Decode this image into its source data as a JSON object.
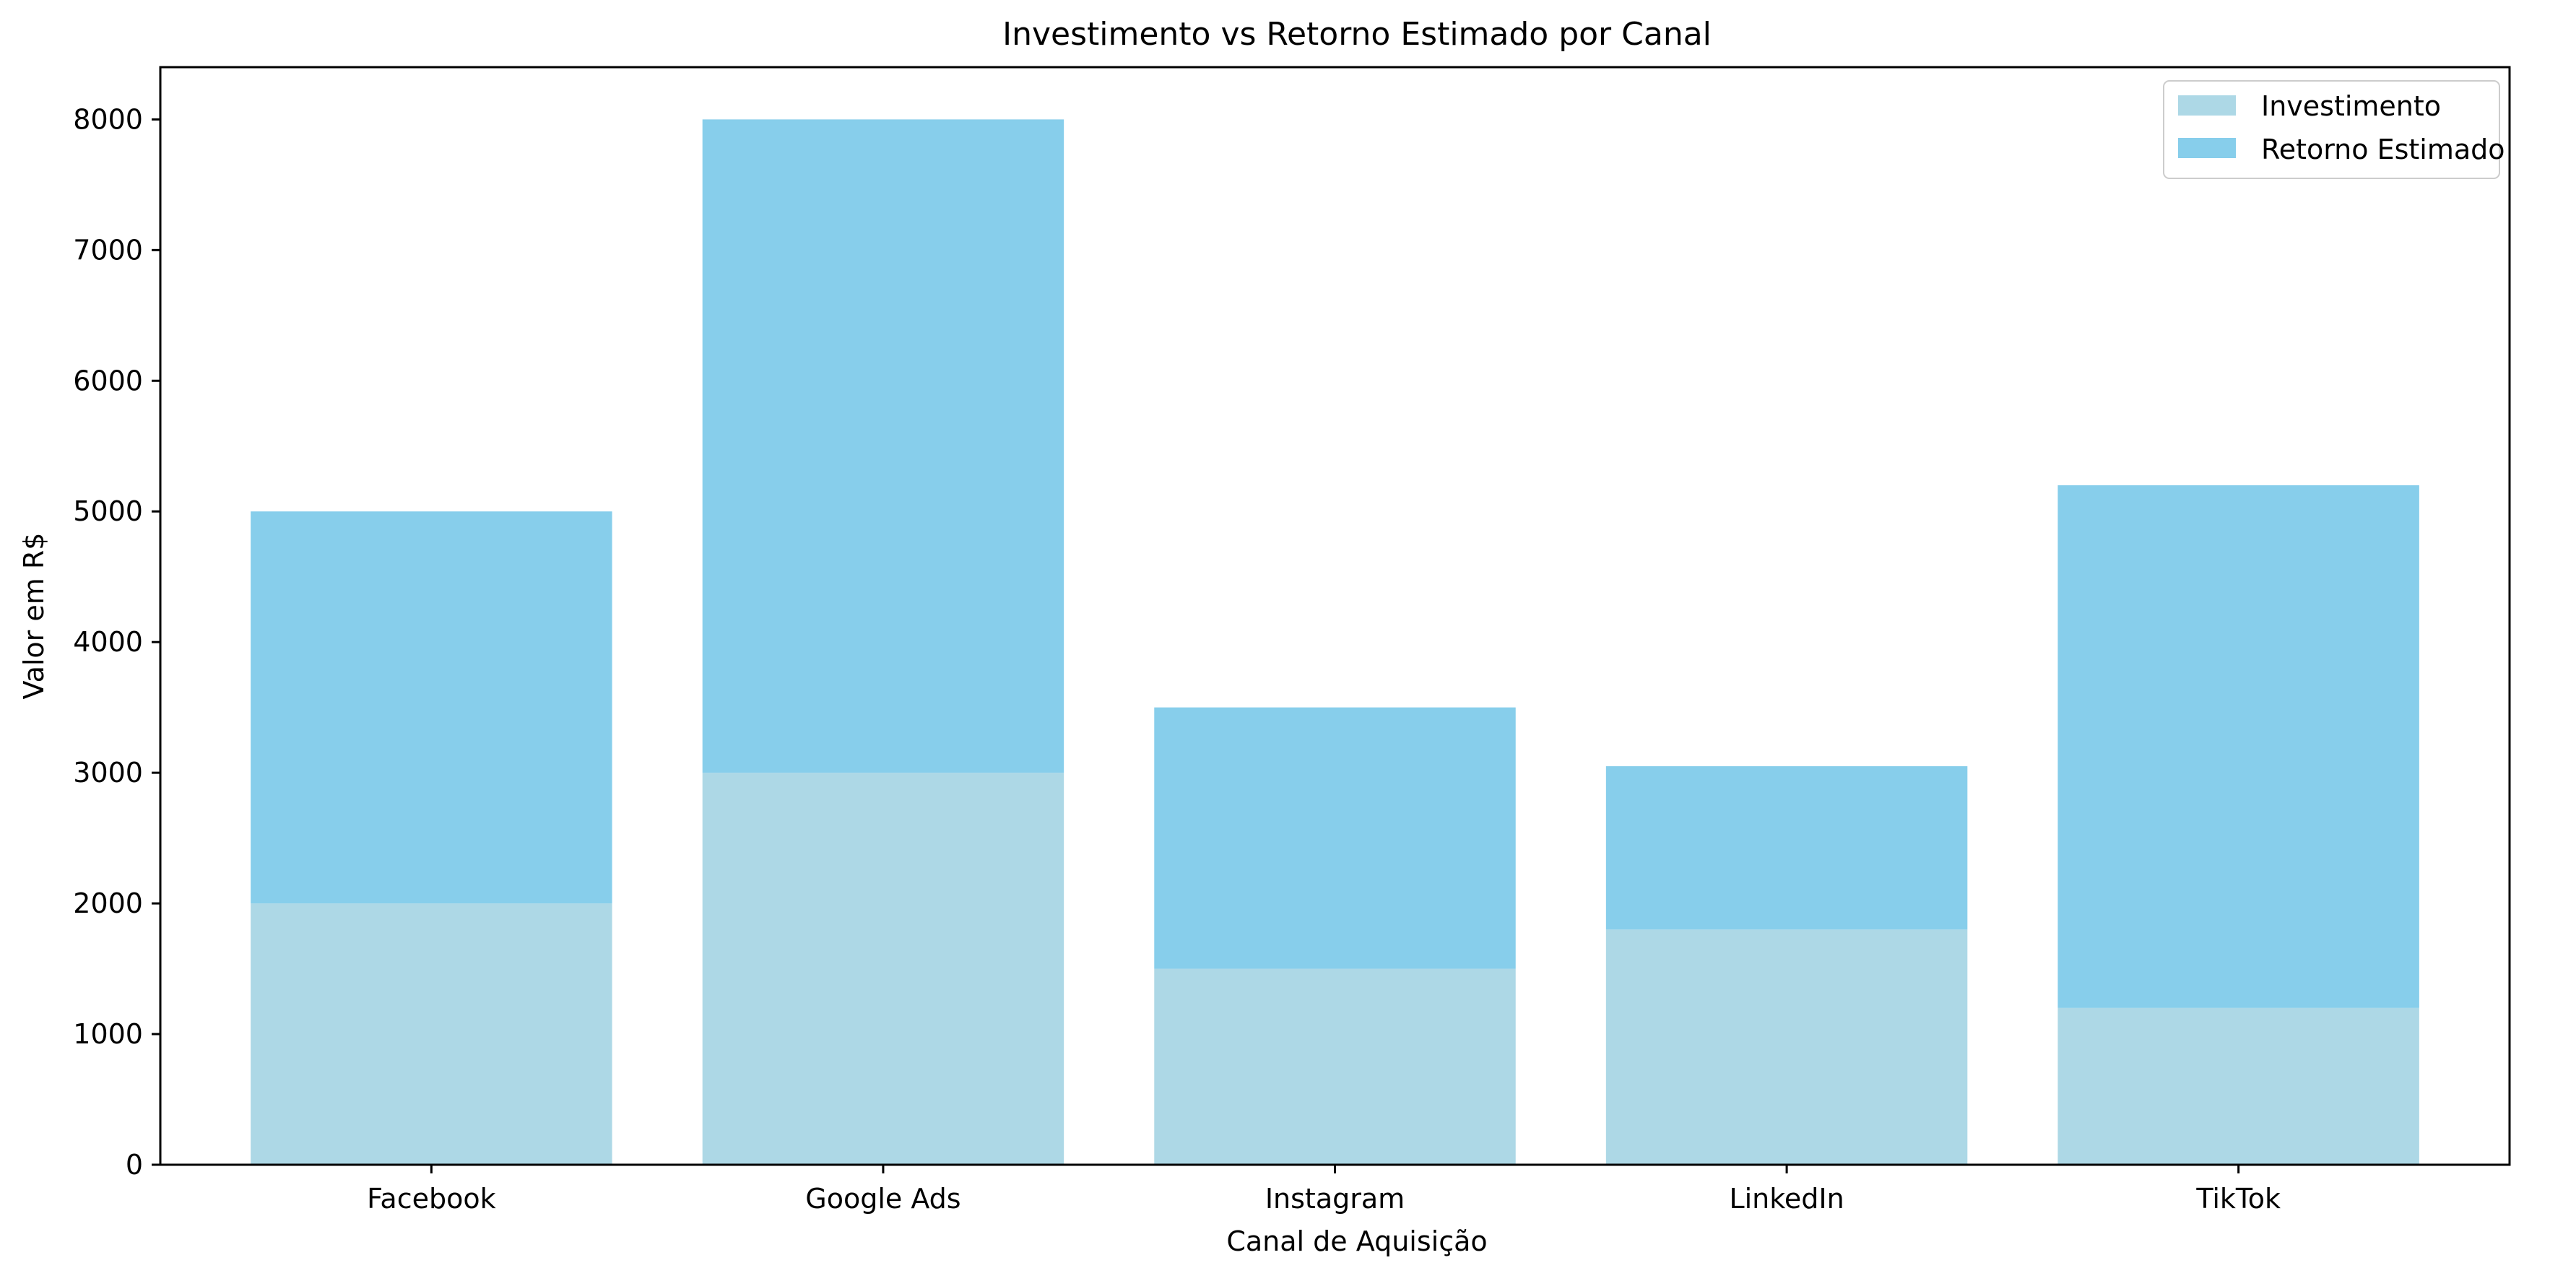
{
  "chart_data": {
    "type": "bar",
    "stacked": true,
    "title": "Investimento vs Retorno Estimado por Canal",
    "xlabel": "Canal de Aquisição",
    "ylabel": "Valor em R$",
    "categories": [
      "Facebook",
      "Google Ads",
      "Instagram",
      "LinkedIn",
      "TikTok"
    ],
    "series": [
      {
        "name": "Investimento",
        "values": [
          2000,
          3000,
          1500,
          1800,
          1200
        ],
        "color": "#add8e6"
      },
      {
        "name": "Retorno Estimado",
        "values": [
          3000,
          5000,
          2000,
          1250,
          4000
        ],
        "color": "#87ceeb"
      }
    ],
    "ylim": [
      0,
      8400
    ],
    "yticks": [
      0,
      1000,
      2000,
      3000,
      4000,
      5000,
      6000,
      7000,
      8000
    ],
    "grid": false,
    "legend_position": "top-right"
  }
}
